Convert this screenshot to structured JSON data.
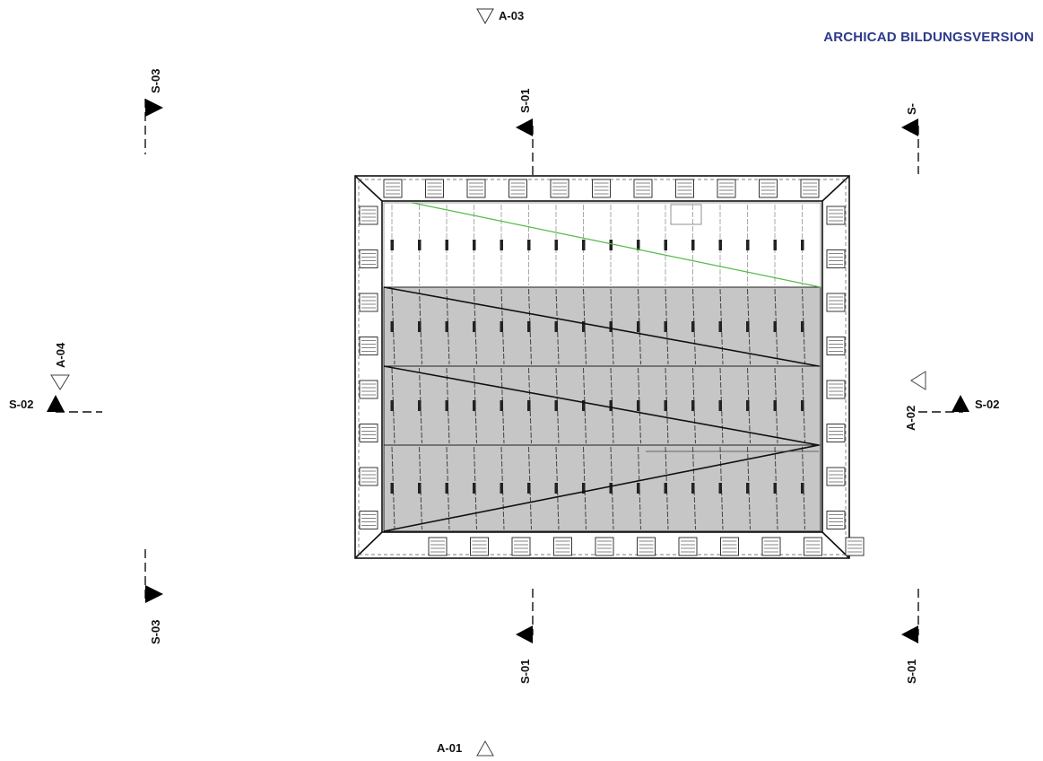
{
  "watermark": {
    "text": "ARCHICAD BILDUNGSVERSION",
    "color": "#2d3a8c"
  },
  "colors": {
    "line": "#111111",
    "fill_gray": "#c6c6c6",
    "accent_green": "#54b948",
    "watermark": "#2d3a8c"
  },
  "markers": {
    "a03_top": "A-03",
    "s03_top_left": "S-03",
    "s01_top_center": "S-01",
    "s_top_right": "S-",
    "a04_left": "A-04",
    "s02_left": "S-02",
    "a02_right": "A-02",
    "s02_right": "S-02",
    "s03_bottom_left": "S-03",
    "s01_bottom_center": "S-01",
    "s01_bottom_right": "S-01",
    "a01_bottom": "A-01"
  }
}
